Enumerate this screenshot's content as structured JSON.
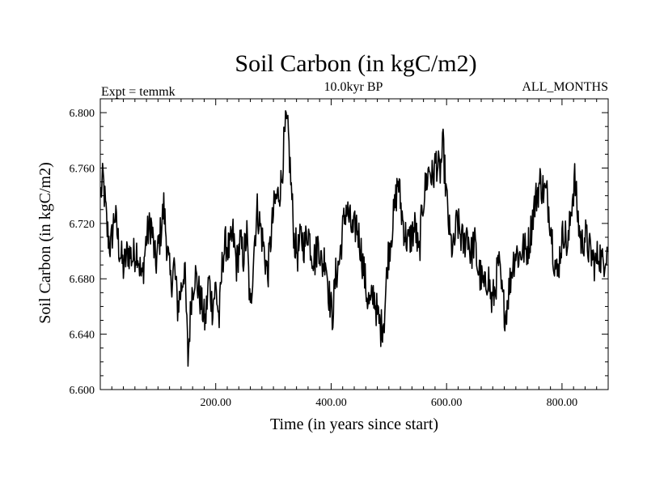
{
  "chart_data": {
    "type": "line",
    "title": "Soil Carbon (in kgC/m2)",
    "subtitle": "10.0kyr BP",
    "left_label": "Expt = temmk",
    "right_label": "ALL_MONTHS",
    "xlabel": "Time (in years since start)",
    "ylabel": "Soil Carbon (in kgC/m2)",
    "xlim": [
      0,
      880
    ],
    "ylim": [
      6.6,
      6.81
    ],
    "x_ticks": [
      200,
      400,
      600,
      800
    ],
    "x_tick_labels": [
      "200.00",
      "400.00",
      "600.00",
      "800.00"
    ],
    "y_ticks": [
      6.6,
      6.64,
      6.68,
      6.72,
      6.76,
      6.8
    ],
    "y_tick_labels": [
      "6.600",
      "6.640",
      "6.680",
      "6.720",
      "6.760",
      "6.800"
    ],
    "x_minor_step": 20,
    "y_minor_step": 0.01,
    "series": [
      {
        "name": "Soil Carbon",
        "color": "#000000",
        "x_start": 1,
        "x_step": 1,
        "anchors": [
          [
            1,
            6.742
          ],
          [
            5,
            6.752
          ],
          [
            12,
            6.715
          ],
          [
            18,
            6.702
          ],
          [
            25,
            6.728
          ],
          [
            32,
            6.704
          ],
          [
            40,
            6.688
          ],
          [
            48,
            6.7
          ],
          [
            56,
            6.695
          ],
          [
            64,
            6.702
          ],
          [
            72,
            6.678
          ],
          [
            80,
            6.71
          ],
          [
            88,
            6.72
          ],
          [
            96,
            6.69
          ],
          [
            104,
            6.712
          ],
          [
            110,
            6.732
          ],
          [
            116,
            6.702
          ],
          [
            122,
            6.676
          ],
          [
            128,
            6.69
          ],
          [
            134,
            6.66
          ],
          [
            140,
            6.672
          ],
          [
            146,
            6.69
          ],
          [
            152,
            6.622
          ],
          [
            158,
            6.668
          ],
          [
            164,
            6.684
          ],
          [
            170,
            6.672
          ],
          [
            176,
            6.66
          ],
          [
            182,
            6.648
          ],
          [
            188,
            6.68
          ],
          [
            194,
            6.66
          ],
          [
            200,
            6.674
          ],
          [
            206,
            6.65
          ],
          [
            212,
            6.696
          ],
          [
            218,
            6.706
          ],
          [
            224,
            6.7
          ],
          [
            230,
            6.712
          ],
          [
            236,
            6.69
          ],
          [
            242,
            6.706
          ],
          [
            248,
            6.696
          ],
          [
            254,
            6.712
          ],
          [
            260,
            6.654
          ],
          [
            266,
            6.702
          ],
          [
            272,
            6.73
          ],
          [
            278,
            6.716
          ],
          [
            284,
            6.7
          ],
          [
            290,
            6.682
          ],
          [
            296,
            6.712
          ],
          [
            302,
            6.734
          ],
          [
            308,
            6.74
          ],
          [
            314,
            6.75
          ],
          [
            318,
            6.776
          ],
          [
            322,
            6.792
          ],
          [
            326,
            6.782
          ],
          [
            330,
            6.752
          ],
          [
            336,
            6.708
          ],
          [
            342,
            6.698
          ],
          [
            348,
            6.71
          ],
          [
            354,
            6.704
          ],
          [
            360,
            6.716
          ],
          [
            366,
            6.7
          ],
          [
            372,
            6.694
          ],
          [
            378,
            6.708
          ],
          [
            384,
            6.688
          ],
          [
            390,
            6.698
          ],
          [
            396,
            6.67
          ],
          [
            402,
            6.652
          ],
          [
            408,
            6.682
          ],
          [
            414,
            6.692
          ],
          [
            420,
            6.715
          ],
          [
            426,
            6.732
          ],
          [
            432,
            6.722
          ],
          [
            438,
            6.712
          ],
          [
            444,
            6.72
          ],
          [
            450,
            6.706
          ],
          [
            456,
            6.688
          ],
          [
            462,
            6.668
          ],
          [
            468,
            6.66
          ],
          [
            474,
            6.67
          ],
          [
            480,
            6.654
          ],
          [
            486,
            6.644
          ],
          [
            492,
            6.652
          ],
          [
            498,
            6.694
          ],
          [
            504,
            6.712
          ],
          [
            510,
            6.73
          ],
          [
            516,
            6.752
          ],
          [
            522,
            6.728
          ],
          [
            528,
            6.712
          ],
          [
            534,
            6.706
          ],
          [
            540,
            6.712
          ],
          [
            546,
            6.718
          ],
          [
            552,
            6.694
          ],
          [
            558,
            6.732
          ],
          [
            564,
            6.748
          ],
          [
            570,
            6.76
          ],
          [
            576,
            6.752
          ],
          [
            582,
            6.766
          ],
          [
            588,
            6.755
          ],
          [
            594,
            6.775
          ],
          [
            600,
            6.738
          ],
          [
            606,
            6.708
          ],
          [
            612,
            6.7
          ],
          [
            618,
            6.722
          ],
          [
            624,
            6.712
          ],
          [
            630,
            6.704
          ],
          [
            636,
            6.716
          ],
          [
            642,
            6.696
          ],
          [
            648,
            6.708
          ],
          [
            654,
            6.688
          ],
          [
            660,
            6.68
          ],
          [
            666,
            6.672
          ],
          [
            672,
            6.684
          ],
          [
            678,
            6.662
          ],
          [
            684,
            6.672
          ],
          [
            690,
            6.692
          ],
          [
            696,
            6.668
          ],
          [
            702,
            6.654
          ],
          [
            708,
            6.672
          ],
          [
            714,
            6.69
          ],
          [
            720,
            6.7
          ],
          [
            726,
            6.696
          ],
          [
            732,
            6.702
          ],
          [
            738,
            6.7
          ],
          [
            744,
            6.708
          ],
          [
            750,
            6.728
          ],
          [
            756,
            6.74
          ],
          [
            762,
            6.75
          ],
          [
            768,
            6.744
          ],
          [
            774,
            6.74
          ],
          [
            780,
            6.722
          ],
          [
            786,
            6.696
          ],
          [
            792,
            6.682
          ],
          [
            798,
            6.704
          ],
          [
            804,
            6.716
          ],
          [
            810,
            6.7
          ],
          [
            816,
            6.732
          ],
          [
            822,
            6.752
          ],
          [
            828,
            6.722
          ],
          [
            834,
            6.704
          ],
          [
            840,
            6.712
          ],
          [
            846,
            6.702
          ],
          [
            852,
            6.696
          ],
          [
            858,
            6.69
          ],
          [
            864,
            6.7
          ],
          [
            870,
            6.69
          ],
          [
            876,
            6.7
          ],
          [
            880,
            6.704
          ]
        ],
        "noise_amplitude": 0.014
      }
    ]
  }
}
